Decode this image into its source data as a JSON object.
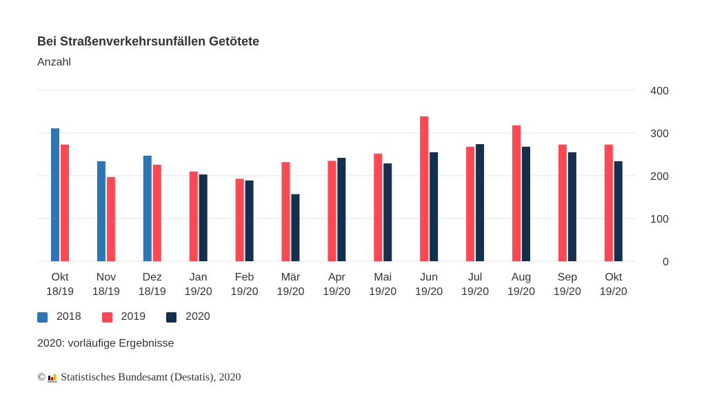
{
  "header": {
    "title": "Bei Straßenverkehrsunfällen Getötete",
    "subtitle": "Anzahl"
  },
  "legend": [
    {
      "label": "2018",
      "color": "#2E75B6"
    },
    {
      "label": "2019",
      "color": "#FF4853"
    },
    {
      "label": "2020",
      "color": "#14304F"
    }
  ],
  "note": "2020: vorläufige Ergebnisse",
  "source": {
    "copyright_symbol": "©",
    "text": "Statistisches Bundesamt (Destatis), 2020",
    "logo_colors": [
      "#111111",
      "#e3000f",
      "#f0b400"
    ]
  },
  "chart_data": {
    "type": "bar",
    "title": "Bei Straßenverkehrsunfällen Getötete",
    "subtitle": "Anzahl",
    "xlabel": "",
    "ylabel": "Anzahl",
    "ylim": [
      0,
      400
    ],
    "yticks": [
      0,
      100,
      200,
      300,
      400
    ],
    "grid": true,
    "y_axis_position": "right",
    "legend_position": "bottom-left",
    "categories": [
      {
        "line1": "Okt",
        "line2": "18/19"
      },
      {
        "line1": "Nov",
        "line2": "18/19"
      },
      {
        "line1": "Dez",
        "line2": "18/19"
      },
      {
        "line1": "Jan",
        "line2": "19/20"
      },
      {
        "line1": "Feb",
        "line2": "19/20"
      },
      {
        "line1": "Mär",
        "line2": "19/20"
      },
      {
        "line1": "Apr",
        "line2": "19/20"
      },
      {
        "line1": "Mai",
        "line2": "19/20"
      },
      {
        "line1": "Jun",
        "line2": "19/20"
      },
      {
        "line1": "Jul",
        "line2": "19/20"
      },
      {
        "line1": "Aug",
        "line2": "19/20"
      },
      {
        "line1": "Sep",
        "line2": "19/20"
      },
      {
        "line1": "Okt",
        "line2": "19/20"
      }
    ],
    "series": [
      {
        "name": "2018",
        "color": "#2E75B6",
        "values": [
          311,
          234,
          247,
          null,
          null,
          null,
          null,
          null,
          null,
          null,
          null,
          null,
          null
        ]
      },
      {
        "name": "2019",
        "color": "#FF4853",
        "values": [
          273,
          197,
          226,
          210,
          193,
          232,
          235,
          252,
          339,
          268,
          318,
          273,
          273
        ]
      },
      {
        "name": "2020",
        "color": "#14304F",
        "values": [
          null,
          null,
          null,
          203,
          189,
          157,
          242,
          229,
          255,
          274,
          268,
          255,
          234
        ]
      }
    ]
  }
}
